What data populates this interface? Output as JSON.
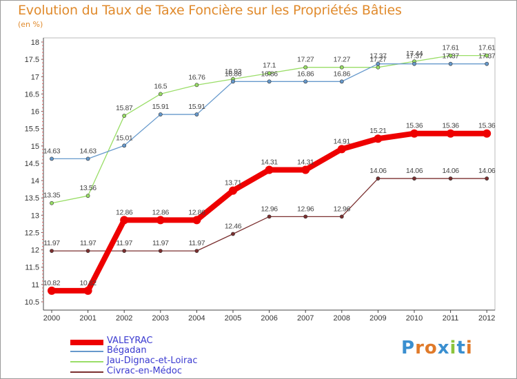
{
  "chart_data": {
    "type": "line",
    "title": "Evolution du Taux de Taxe Foncière sur les Propriétés Bâties",
    "subtitle": "(en %)",
    "xlabel": "",
    "ylabel": "",
    "ylim": [
      10.5,
      18
    ],
    "yticks": [
      "10.5",
      "11",
      "11.5",
      "12",
      "12.5",
      "13",
      "13.5",
      "14",
      "14.5",
      "15",
      "15.5",
      "16",
      "16.5",
      "17",
      "17.5",
      "18"
    ],
    "x": [
      "2000",
      "2001",
      "2002",
      "2003",
      "2004",
      "2005",
      "2006",
      "2007",
      "2008",
      "2009",
      "2010",
      "2011",
      "2012"
    ],
    "series": [
      {
        "name": "Civrac-en-Médoc",
        "color": "#7a2f2f",
        "labels": [
          "11.97",
          "11.97",
          "11.97",
          "11.97",
          "11.97",
          "12.46",
          "12.96",
          "12.96",
          "12.96",
          "14.06",
          "14.06",
          "14.06",
          "14.06"
        ],
        "values": [
          11.97,
          11.97,
          11.97,
          11.97,
          11.97,
          12.46,
          12.96,
          12.96,
          12.96,
          14.06,
          14.06,
          14.06,
          14.06
        ]
      },
      {
        "name": "Jau-Dignac-et-Loirac",
        "color": "#99dd66",
        "labels": [
          "13.35",
          "13.56",
          "15.87",
          "16.5",
          "16.76",
          "16.93",
          "17.1",
          "17.27",
          "17.27",
          "17.27",
          "17.44",
          "17.61",
          "17.61"
        ],
        "values": [
          13.35,
          13.56,
          15.87,
          16.5,
          16.76,
          16.93,
          17.1,
          17.27,
          17.27,
          17.27,
          17.44,
          17.61,
          17.61
        ]
      },
      {
        "name": "Bégadan",
        "color": "#6699cc",
        "labels": [
          "14.63",
          "14.63",
          "15.01",
          "15.91",
          "15.91",
          "16.86",
          "16.86",
          "16.86",
          "16.86",
          "17.37",
          "17.37",
          "17.37",
          "17.37"
        ],
        "values": [
          14.63,
          14.63,
          15.01,
          15.91,
          15.91,
          16.86,
          16.86,
          16.86,
          16.86,
          17.37,
          17.37,
          17.37,
          17.37
        ]
      },
      {
        "name": "VALEYRAC",
        "color": "#ee0000",
        "labels": [
          "10.82",
          "10.82",
          "12.86",
          "12.86",
          "12.86",
          "13.71",
          "14.31",
          "14.31",
          "14.91",
          "15.21",
          "15.36",
          "15.36",
          "15.36"
        ],
        "values": [
          10.82,
          10.82,
          12.86,
          12.86,
          12.86,
          13.71,
          14.31,
          14.31,
          14.91,
          15.21,
          15.36,
          15.36,
          15.36
        ]
      }
    ],
    "legend": [
      "VALEYRAC",
      "Bégadan",
      "Jau-Dignac-et-Loirac",
      "Civrac-en-Médoc"
    ],
    "legend_placement": "bottom-left",
    "grid": false
  },
  "legend_colors": {
    "VALEYRAC": "#ee0000",
    "Bégadan": "#6699cc",
    "Jau-Dignac-et-Loirac": "#99dd66",
    "Civrac-en-Médoc": "#7a2f2f"
  },
  "logo": {
    "text": "Proxiti"
  }
}
